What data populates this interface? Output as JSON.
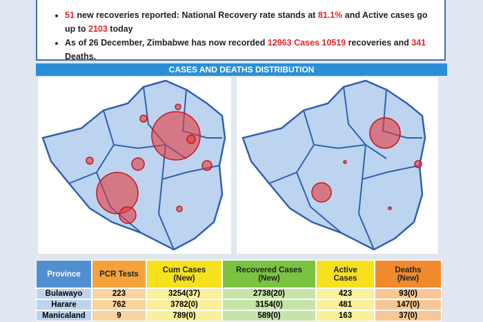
{
  "bullets": [
    [
      {
        "text": "51",
        "red": true
      },
      {
        "text": " new recoveries reported: National Recovery rate stands at ",
        "red": false
      },
      {
        "text": "81.1%",
        "red": true
      },
      {
        "text": " and Active cases go up to ",
        "red": false
      },
      {
        "text": "2103",
        "red": true
      },
      {
        "text": " today",
        "red": false
      }
    ],
    [
      {
        "text": "As of 26 December, Zimbabwe has now recorded ",
        "red": false
      },
      {
        "text": "12963 Cases 10519",
        "red": true
      },
      {
        "text": " recoveries and ",
        "red": false
      },
      {
        "text": "341",
        "red": true
      },
      {
        "text": " Deaths.",
        "red": false
      }
    ]
  ],
  "section_title": "CASES AND DEATHS DISTRIBUTION",
  "table": {
    "columns": [
      {
        "label": "Province",
        "color": "#4f8fd0",
        "cell_color": "#bcd3ee"
      },
      {
        "label": "PCR Tests",
        "color": "#f4a23b",
        "cell_color": "#f9d3a0"
      },
      {
        "label": "Cum Cases\n(New)",
        "color": "#f7e11e",
        "cell_color": "#fbf09a"
      },
      {
        "label": "Recovered Cases\n(New)",
        "color": "#7cc241",
        "cell_color": "#c6e4a8"
      },
      {
        "label": "Active\nCases",
        "color": "#f7e11e",
        "cell_color": "#fbf09a"
      },
      {
        "label": "Deaths\n(New)",
        "color": "#f08a2c",
        "cell_color": "#f8c794"
      }
    ],
    "rows": [
      [
        "Bulawayo",
        "223",
        "3254(37)",
        "2738(20)",
        "423",
        "93(0)"
      ],
      [
        "Harare",
        "762",
        "3782(0)",
        "3154(0)",
        "481",
        "147(0)"
      ],
      [
        "Manicaland",
        "9",
        "789(0)",
        "589(0)",
        "163",
        "37(0)"
      ]
    ]
  }
}
